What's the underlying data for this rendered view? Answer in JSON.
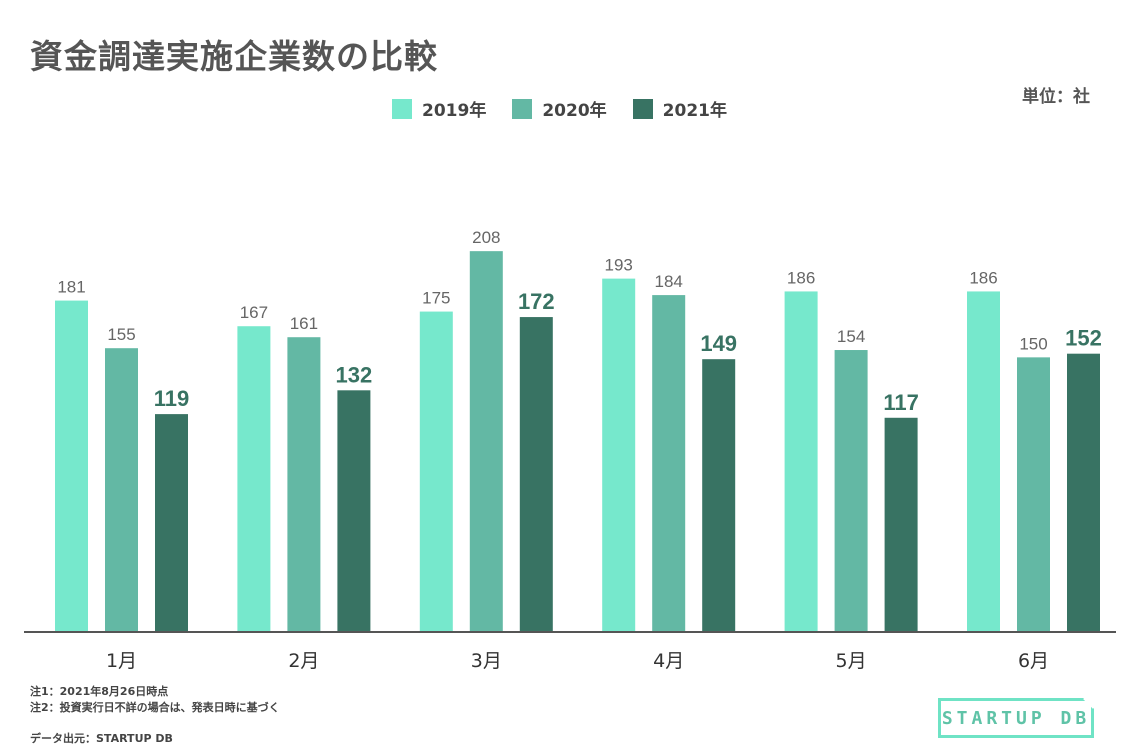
{
  "title": "資金調達実施企業数の比較",
  "unit_label": "単位：社",
  "notes": [
    "注1：2021年8月26日時点",
    "注2：投資実行日不詳の場合は、発表日時に基づく"
  ],
  "source": "データ出元：STARTUP DB",
  "logo_text": "STARTUP DB",
  "chart_data": {
    "type": "bar",
    "title": "資金調達実施企業数の比較",
    "categories": [
      "1月",
      "2月",
      "3月",
      "4月",
      "5月",
      "6月"
    ],
    "series": [
      {
        "name": "2019年",
        "color": "#76e8cc",
        "values": [
          181,
          167,
          175,
          193,
          186,
          186
        ],
        "label_bold": false
      },
      {
        "name": "2020年",
        "color": "#63b8a4",
        "values": [
          155,
          161,
          208,
          184,
          154,
          150
        ],
        "label_bold": false
      },
      {
        "name": "2021年",
        "color": "#387363",
        "values": [
          119,
          132,
          172,
          149,
          117,
          152
        ],
        "label_bold": true
      }
    ],
    "ylim": [
      0,
      232
    ],
    "grid": false,
    "legend_position": "top-center",
    "xlabel": "",
    "ylabel": ""
  }
}
